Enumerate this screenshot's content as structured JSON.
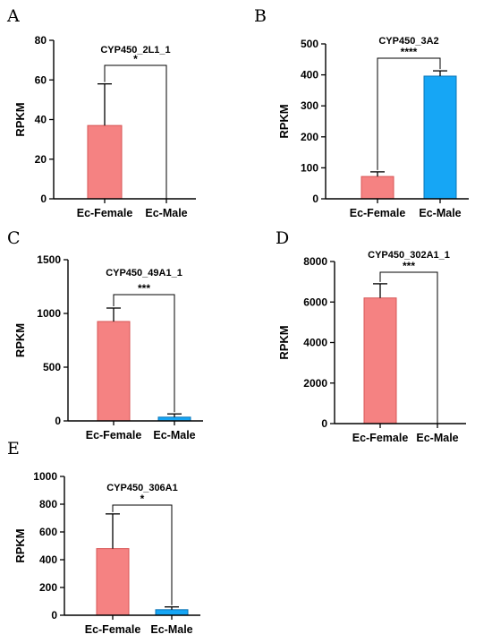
{
  "chart_data": [
    {
      "panel": "A",
      "type": "bar",
      "title": "CYP450_2L1_1",
      "ylabel": "RPKM",
      "ylim": [
        0,
        80
      ],
      "yticks": [
        0,
        20,
        40,
        60,
        80
      ],
      "categories": [
        "Ec-Female",
        "Ec-Male"
      ],
      "values": [
        37,
        0
      ],
      "errors": [
        21,
        0
      ],
      "significance": "*"
    },
    {
      "panel": "B",
      "type": "bar",
      "title": "CYP450_3A2",
      "ylabel": "RPKM",
      "ylim": [
        0,
        500
      ],
      "yticks": [
        0,
        100,
        200,
        300,
        400,
        500
      ],
      "categories": [
        "Ec-Female",
        "Ec-Male"
      ],
      "values": [
        72,
        396
      ],
      "errors": [
        15,
        17
      ],
      "significance": "****"
    },
    {
      "panel": "C",
      "type": "bar",
      "title": "CYP450_49A1_1",
      "ylabel": "RPKM",
      "ylim": [
        0,
        1500
      ],
      "yticks": [
        0,
        500,
        1000,
        1500
      ],
      "categories": [
        "Ec-Female",
        "Ec-Male"
      ],
      "values": [
        925,
        35
      ],
      "errors": [
        125,
        30
      ],
      "significance": "***"
    },
    {
      "panel": "D",
      "type": "bar",
      "title": "CYP450_302A1_1",
      "ylabel": "RPKM",
      "ylim": [
        0,
        8000
      ],
      "yticks": [
        0,
        2000,
        4000,
        6000,
        8000
      ],
      "categories": [
        "Ec-Female",
        "Ec-Male"
      ],
      "values": [
        6200,
        0
      ],
      "errors": [
        700,
        0
      ],
      "significance": "***"
    },
    {
      "panel": "E",
      "type": "bar",
      "title": "CYP450_306A1",
      "ylabel": "RPKM",
      "ylim": [
        0,
        1000
      ],
      "yticks": [
        0,
        200,
        400,
        600,
        800,
        1000
      ],
      "categories": [
        "Ec-Female",
        "Ec-Male"
      ],
      "values": [
        480,
        40
      ],
      "errors": [
        250,
        20
      ],
      "significance": "*"
    }
  ],
  "colors": {
    "female_fill": "#f58282",
    "female_stroke": "#d85555",
    "male_fill": "#16a6f5",
    "male_stroke": "#0a74b6",
    "axis": "#000000"
  }
}
